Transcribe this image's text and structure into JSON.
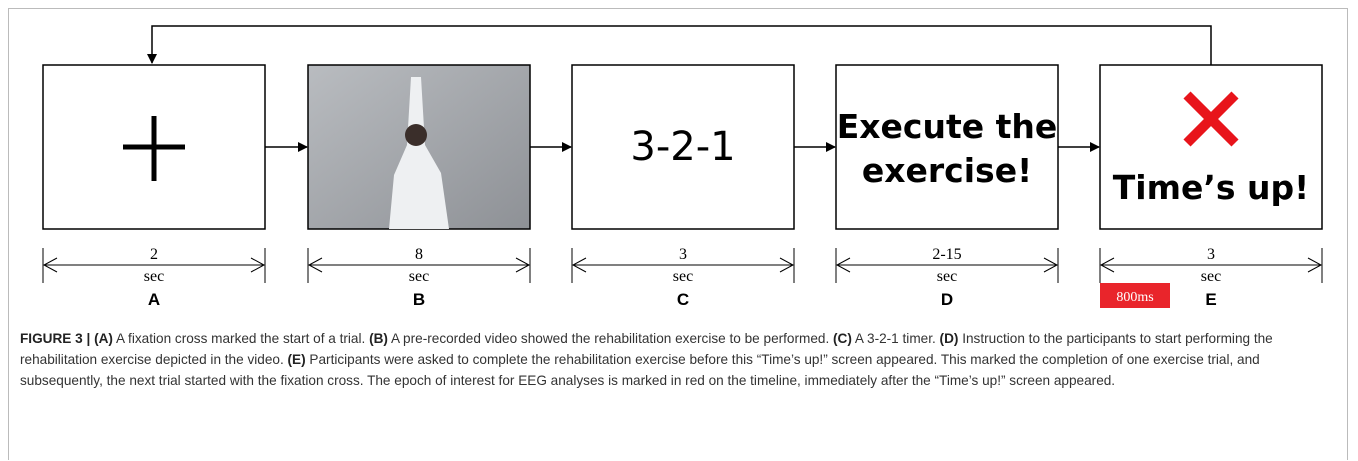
{
  "panels": [
    {
      "letter": "A",
      "duration": "2",
      "unit": "sec"
    },
    {
      "letter": "B",
      "duration": "8",
      "unit": "sec"
    },
    {
      "letter": "C",
      "duration": "3",
      "unit": "sec",
      "lines": [
        "3-2-1"
      ]
    },
    {
      "letter": "D",
      "duration": "2-15",
      "unit": "sec",
      "lines": [
        "Execute the",
        "exercise!"
      ]
    },
    {
      "letter": "E",
      "duration": "3",
      "unit": "sec",
      "lines": [
        "Time’s up!"
      ]
    }
  ],
  "epoch_label": "800ms",
  "caption": {
    "label": "FIGURE 3 |",
    "items": [
      {
        "tag": "(A)",
        "text": " A fixation cross marked the start of a trial. "
      },
      {
        "tag": "(B)",
        "text": " A pre-recorded video showed the rehabilitation exercise to be performed. "
      },
      {
        "tag": "(C)",
        "text": " A 3-2-1 timer. "
      },
      {
        "tag": "(D)",
        "text": " Instruction to the participants to start performing the rehabilitation exercise depicted in the video. "
      },
      {
        "tag": "(E)",
        "text": " Participants were asked to complete the rehabilitation exercise before this “Time’s up!” screen appeared. This marked the completion of one exercise trial, and subsequently, the next trial started with the fixation cross. The epoch of interest for EEG analyses is marked in red on the timeline, immediately after the “Time’s up!” screen appeared."
      }
    ]
  }
}
